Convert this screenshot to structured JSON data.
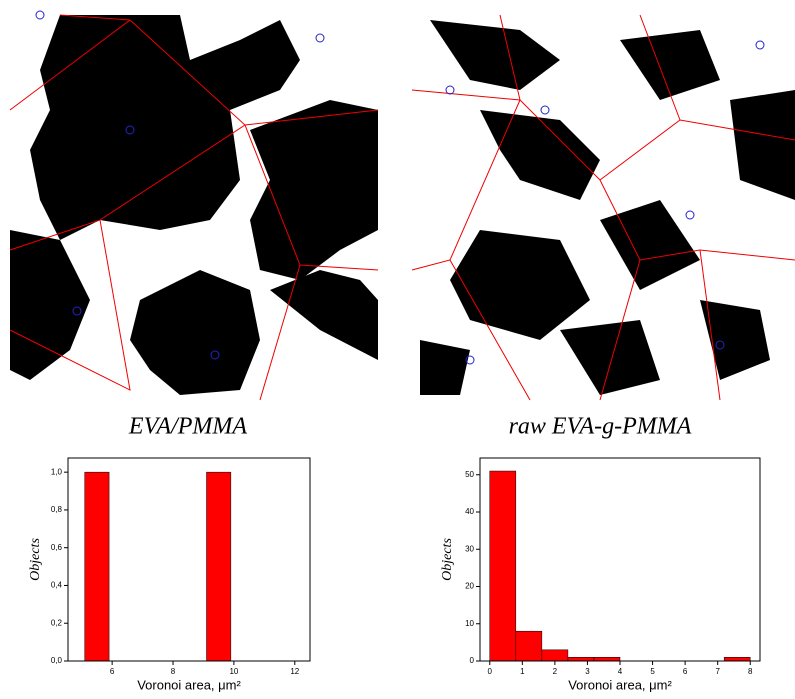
{
  "panels": [
    {
      "caption": "EVA/PMMA"
    },
    {
      "caption": "raw EVA-g-PMMA"
    }
  ],
  "chart_data": [
    {
      "type": "histogram",
      "xlabel": "Voronoi area, μm²",
      "ylabel": "Objects",
      "bins": [
        5.1,
        5.9,
        6.7,
        7.5,
        8.3,
        9.1,
        9.9
      ],
      "counts": [
        1,
        0,
        0,
        0,
        0,
        1
      ],
      "color": "#ff0000",
      "xlim": [
        4.55,
        12.5
      ],
      "xticks": [
        6,
        8,
        10,
        12
      ],
      "ylim": [
        0,
        1.075
      ],
      "yticks": [
        {
          "value": 0,
          "label": "0,0"
        },
        {
          "value": 0.2,
          "label": "0,2"
        },
        {
          "value": 0.4,
          "label": "0,4"
        },
        {
          "value": 0.6,
          "label": "0,6"
        },
        {
          "value": 0.8,
          "label": "0,8"
        },
        {
          "value": 1.0,
          "label": "1,0"
        }
      ]
    },
    {
      "type": "histogram",
      "xlabel": "Voronoi area, μm²",
      "ylabel": "Objects",
      "bins": [
        0,
        0.8,
        1.6,
        2.4,
        3.2,
        4.0,
        4.8,
        5.6,
        6.4,
        7.2,
        8.0
      ],
      "counts": [
        51,
        8,
        3,
        1,
        1,
        0,
        0,
        0,
        0,
        1
      ],
      "color": "#ff0000",
      "xlim": [
        -0.3,
        8.3
      ],
      "xticks": [
        0,
        1,
        2,
        3,
        4,
        5,
        6,
        7,
        8
      ],
      "ylim": [
        0,
        54.5
      ],
      "yticks": [
        0,
        10,
        20,
        30,
        40,
        50
      ]
    }
  ]
}
